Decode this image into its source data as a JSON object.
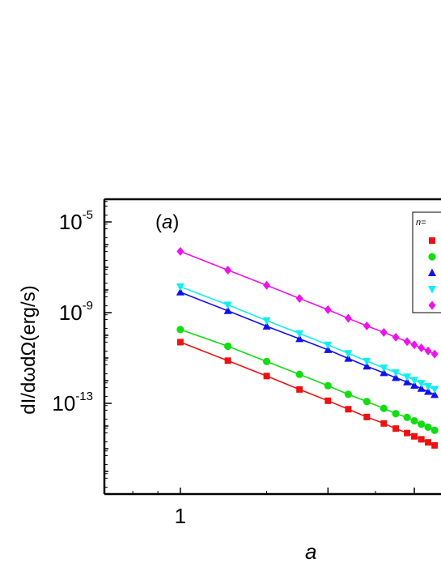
{
  "chart_data": {
    "type": "scatter",
    "panel_label": "(a)",
    "xlabel": "a",
    "ylabel": "dI/dωdΩ(erg/s)",
    "x_scale": "log",
    "y_scale": "log",
    "xlim": [
      0.7,
      3.4
    ],
    "ylim": [
      1e-17,
      0.0001
    ],
    "x_tick_labels": [
      {
        "value": 1,
        "text": "1"
      }
    ],
    "y_tick_labels": [
      {
        "value": 1e-05,
        "base": "10",
        "exp": "-5"
      },
      {
        "value": 1e-09,
        "base": "10",
        "exp": "-9"
      },
      {
        "value": 1e-13,
        "base": "10",
        "exp": "-13"
      }
    ],
    "legend": {
      "title": "n=",
      "position": "top-right"
    },
    "x": [
      1.0,
      1.25,
      1.5,
      1.75,
      2.0,
      2.2,
      2.4,
      2.6,
      2.75,
      2.9,
      3.0,
      3.1,
      3.2,
      3.3
    ],
    "series": [
      {
        "marker": "square",
        "color": "#ee1111",
        "values": [
          5e-11,
          7.6e-12,
          1.6e-12,
          4.1e-13,
          1.3e-13,
          5.5e-14,
          2.5e-14,
          1.3e-14,
          7.7e-15,
          4.9e-15,
          3.5e-15,
          2.6e-15,
          1.9e-15,
          1.4e-15
        ]
      },
      {
        "marker": "circle",
        "color": "#11dd11",
        "values": [
          1.8e-10,
          3.3e-11,
          7e-12,
          1.9e-12,
          6e-13,
          2.5e-13,
          1.2e-13,
          6e-14,
          3.5e-14,
          2.4e-14,
          1.7e-14,
          1.2e-14,
          8.9e-15,
          6.5e-15
        ]
      },
      {
        "marker": "triangle-up",
        "color": "#1111ee",
        "values": [
          8e-09,
          1.2e-09,
          2.5e-10,
          7e-11,
          2.3e-11,
          9.5e-12,
          4.3e-12,
          2.2e-12,
          1.35e-12,
          8.7e-13,
          6.2e-13,
          4.5e-13,
          3.3e-13,
          2.4e-13
        ]
      },
      {
        "marker": "triangle-down",
        "color": "#11eeee",
        "values": [
          1.4e-08,
          2.2e-09,
          4.5e-10,
          1.2e-10,
          3.8e-11,
          1.6e-11,
          7.3e-12,
          3.7e-12,
          2.3e-12,
          1.5e-12,
          1.05e-12,
          7.7e-13,
          5.7e-13,
          4.2e-13
        ]
      },
      {
        "marker": "diamond",
        "color": "#ee11ee",
        "values": [
          5e-07,
          7.5e-08,
          1.6e-08,
          4.2e-09,
          1.35e-09,
          5.6e-10,
          2.6e-10,
          1.35e-10,
          8.2e-11,
          5.3e-11,
          3.8e-11,
          2.8e-11,
          2.05e-11,
          1.5e-11
        ]
      }
    ]
  }
}
